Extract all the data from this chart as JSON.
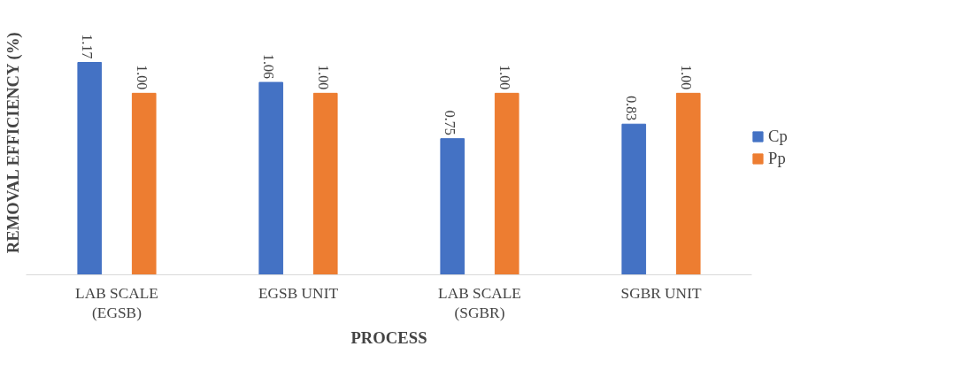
{
  "chart_data": {
    "type": "bar",
    "xlabel": "PROCESS",
    "ylabel": "REMOVAL EFFICIENCY (%)",
    "categories": [
      "LAB SCALE\n(EGSB)",
      "EGSB UNIT",
      "LAB SCALE\n(SGBR)",
      "SGBR UNIT"
    ],
    "series": [
      {
        "name": "Cp",
        "color": "#4472c4",
        "values": [
          1.17,
          1.06,
          0.75,
          0.83
        ],
        "value_labels": [
          "1.17",
          "1.06",
          "0.75",
          "0.83"
        ]
      },
      {
        "name": "Pp",
        "color": "#ed7d31",
        "values": [
          1.0,
          1.0,
          1.0,
          1.0
        ],
        "value_labels": [
          "1.00",
          "1.00",
          "1.00",
          "1.00"
        ]
      }
    ],
    "tick_labels": "x",
    "legend": "right",
    "grid": false
  }
}
